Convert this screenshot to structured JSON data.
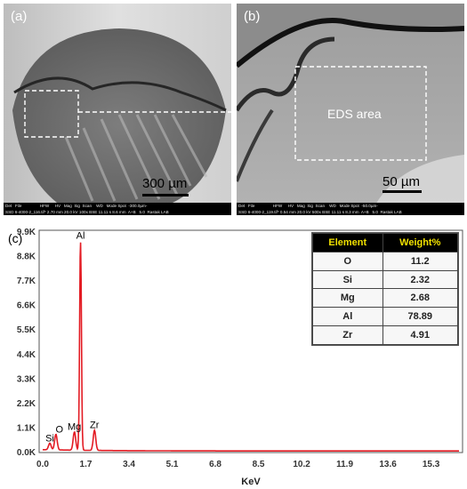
{
  "panel_a": {
    "label": "(a)",
    "scale_bar": "300 µm",
    "meta_line1": "Det   File                HFW     HV   Mag  Sig  Scan    WD   Mode Spot  -300.0µm-",
    "meta_line2": "SSD 6-4000-2_116.tif* 2.70 mm 20.0 kV 100x BSE 11.11 s 8.6 mm  A+B   5.0  Rastak LAB"
  },
  "panel_b": {
    "label": "(b)",
    "eds_area": "EDS area",
    "scale_bar": "50 µm",
    "meta_line1": "Det   File                HFW     HV   Mag  Sig  Scan    WD   Mode Spot  -50.0µm-",
    "meta_line2": "SSD 6-4000-2_119.tif* 0.54 mm 20.0 kV 500x BSE 11.11 s 8.3 mm  A+B   5.0  Rastak LAB"
  },
  "panel_c": {
    "label": "(c)",
    "table": {
      "headers": [
        "Element",
        "Weight%"
      ],
      "rows": [
        {
          "element": "O",
          "weight": "11.2"
        },
        {
          "element": "Si",
          "weight": "2.32"
        },
        {
          "element": "Mg",
          "weight": "2.68"
        },
        {
          "element": "Al",
          "weight": "78.89"
        },
        {
          "element": "Zr",
          "weight": "4.91"
        }
      ]
    }
  },
  "chart_data": {
    "type": "line",
    "xlabel": "KeV",
    "ylabel": "",
    "x_ticks": [
      "0.0",
      "1.7",
      "3.4",
      "5.1",
      "6.8",
      "8.5",
      "10.2",
      "11.9",
      "13.6",
      "15.3"
    ],
    "y_ticks": [
      "0.0K",
      "1.1K",
      "2.2K",
      "3.3K",
      "4.4K",
      "5.5K",
      "6.6K",
      "7.7K",
      "8.8K",
      "9.9K"
    ],
    "xlim": [
      0,
      16.4
    ],
    "ylim": [
      0,
      9900
    ],
    "peaks": [
      {
        "label": "Si",
        "x": 0.28,
        "y": 300
      },
      {
        "label": "O",
        "x": 0.52,
        "y": 700
      },
      {
        "label": "Mg",
        "x": 1.25,
        "y": 820
      },
      {
        "label": "Al",
        "x": 1.49,
        "y": 9400
      },
      {
        "label": "Zr",
        "x": 2.04,
        "y": 900
      }
    ],
    "series_color": "#e31b23"
  }
}
